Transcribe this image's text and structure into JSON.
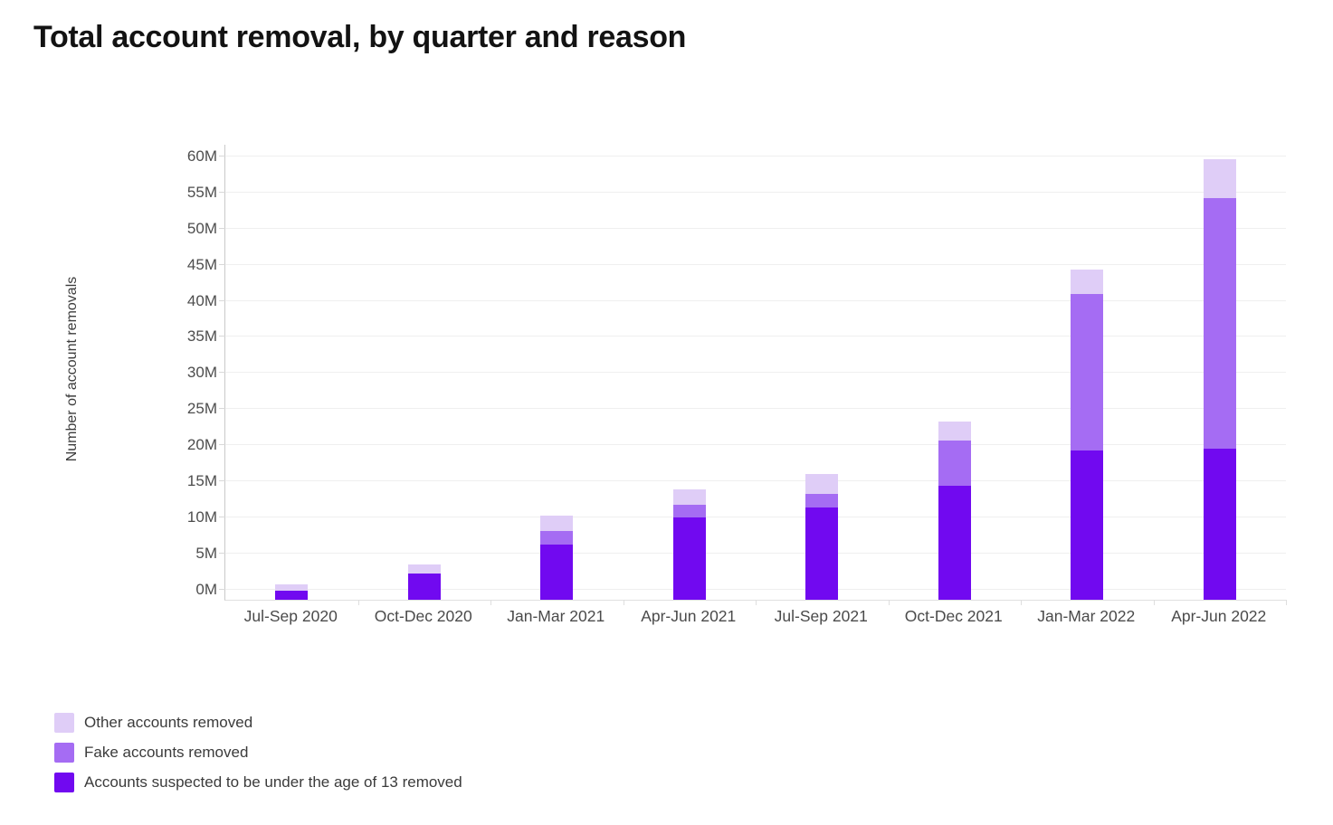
{
  "title": "Total account removal, by quarter and reason",
  "chart_data": {
    "type": "bar",
    "stacked": true,
    "title": "Total account removal, by quarter and reason",
    "xlabel": "",
    "ylabel": "Number of account removals",
    "unit": "M",
    "ylim": [
      0,
      60
    ],
    "grid": true,
    "legend_position": "bottom-left",
    "y_ticks": [
      "0M",
      "5M",
      "10M",
      "15M",
      "20M",
      "25M",
      "30M",
      "35M",
      "40M",
      "45M",
      "50M",
      "55M",
      "60M"
    ],
    "categories": [
      "Jul-Sep 2020",
      "Oct-Dec 2020",
      "Jan-Mar 2021",
      "Apr-Jun 2021",
      "Jul-Sep 2021",
      "Oct-Dec 2021",
      "Jan-Mar 2022",
      "Apr-Jun 2022"
    ],
    "series": [
      {
        "name": "Accounts suspected to be under the age of 13 removed",
        "color": "#7109f0",
        "values": [
          1.2,
          3.6,
          7.5,
          11.2,
          12.5,
          15.5,
          20.3,
          20.6
        ]
      },
      {
        "name": "Fake accounts removed",
        "color": "#a56cf3",
        "values": [
          0,
          0,
          1.9,
          1.7,
          1.9,
          6.1,
          21.3,
          34.0
        ]
      },
      {
        "name": "Other accounts removed",
        "color": "#dfcdf7",
        "values": [
          0.9,
          1.2,
          2.0,
          2.1,
          2.7,
          2.7,
          3.3,
          5.3
        ]
      }
    ],
    "legend_order": [
      "Other accounts removed",
      "Fake accounts removed",
      "Accounts suspected to be under the age of 13 removed"
    ]
  },
  "colors": {
    "under13": "#7109f0",
    "fake": "#a56cf3",
    "other": "#dfcdf7",
    "gridline": "#efefef",
    "axis": "#c9c9c9",
    "tick_text": "#4d4d4d"
  }
}
